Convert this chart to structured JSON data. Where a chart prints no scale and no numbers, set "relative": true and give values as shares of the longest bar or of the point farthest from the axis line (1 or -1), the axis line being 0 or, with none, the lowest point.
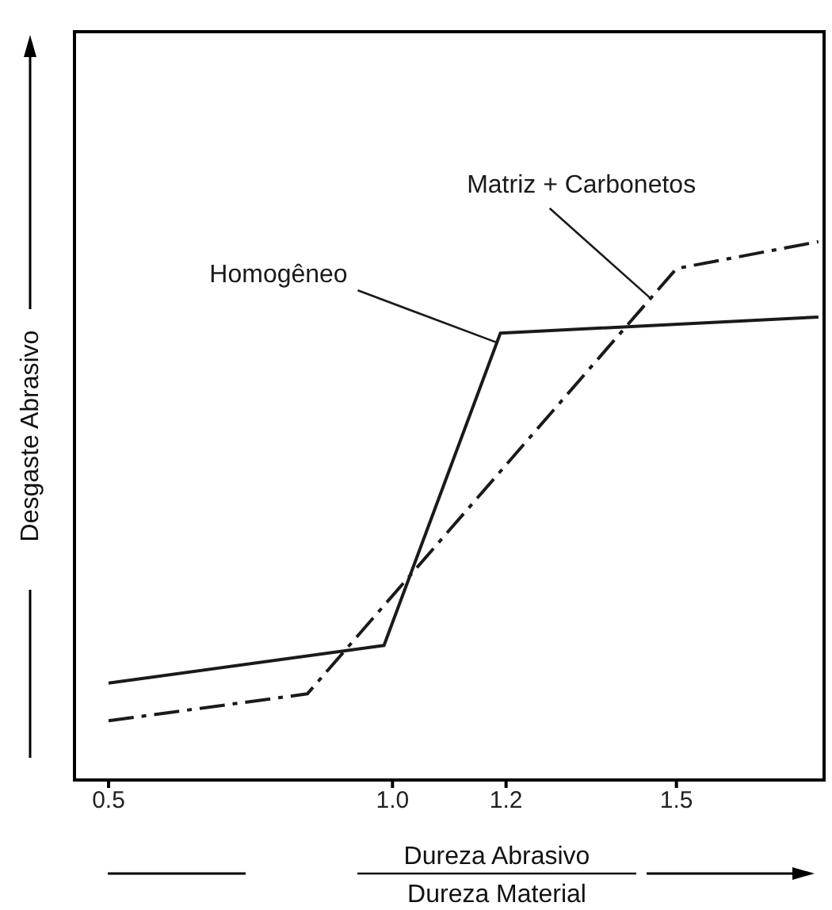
{
  "chart_data": {
    "type": "line",
    "relative": true,
    "xlabel": "Dureza Abrasivo\nDureza Material",
    "ylabel": "Desgaste Abrasivo",
    "xlim": [
      0.44,
      1.76
    ],
    "xticks": [
      0.5,
      {
        "value": 1,
        "label": "1.0"
      },
      1.2,
      1.5
    ],
    "marker": "none",
    "series": [
      {
        "name": "Homogêneo",
        "color": "#1a1a1a",
        "line_style": "solid",
        "x": [
          0.5,
          0.985,
          1.19,
          1.75
        ],
        "values": [
          0.18,
          0.25,
          0.83,
          0.86
        ]
      },
      {
        "name": "Matriz + Carbonetos",
        "color": "#1a1a1a",
        "line_style": "dashed",
        "x": [
          0.5,
          0.85,
          1.5,
          1.75
        ],
        "values": [
          0.11,
          0.16,
          0.95,
          1
        ]
      }
    ]
  }
}
